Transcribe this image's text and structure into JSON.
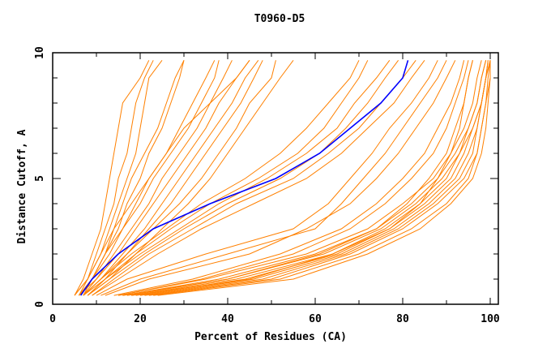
{
  "chart_data": {
    "type": "line",
    "title": "T0960-D5",
    "xlabel": "Percent of Residues (CA)",
    "ylabel": "Distance Cutoff, A",
    "xlim": [
      0,
      102
    ],
    "ylim": [
      0,
      10
    ],
    "x_ticks": [
      "0",
      "20",
      "40",
      "60",
      "80",
      "100"
    ],
    "y_ticks": [
      "0",
      "5",
      "10"
    ],
    "grid": false,
    "colors": {
      "highlight": "#0000ff",
      "others": "#ff8000"
    },
    "y_levels": [
      0.35,
      1,
      2,
      3,
      4,
      5,
      6,
      7,
      8,
      9,
      9.7
    ],
    "highlight_series": {
      "x": [
        6.4,
        9,
        15,
        23,
        36,
        51,
        61,
        68,
        75,
        80,
        81.2
      ]
    },
    "series": [
      {
        "x": [
          5,
          7,
          9,
          11,
          12,
          13,
          14,
          15,
          16,
          20,
          22
        ]
      },
      {
        "x": [
          6,
          8,
          10,
          12,
          14,
          15,
          17,
          18,
          19,
          21,
          23
        ]
      },
      {
        "x": [
          5,
          8,
          11,
          13,
          15,
          17,
          19,
          20,
          21,
          22,
          25
        ]
      },
      {
        "x": [
          6,
          9,
          12,
          15,
          17,
          20,
          22,
          25,
          27,
          29,
          30
        ]
      },
      {
        "x": [
          7,
          9,
          12,
          14,
          16,
          18,
          21,
          24,
          26,
          28,
          30
        ]
      },
      {
        "x": [
          6,
          9,
          13,
          16,
          20,
          23,
          27,
          31,
          34,
          37,
          38
        ]
      },
      {
        "x": [
          7,
          10,
          14,
          18,
          22,
          25,
          29,
          33,
          36,
          39,
          41
        ]
      },
      {
        "x": [
          6,
          10,
          15,
          19,
          23,
          27,
          31,
          35,
          38,
          42,
          45
        ]
      },
      {
        "x": [
          7,
          11,
          16,
          21,
          25,
          29,
          33,
          37,
          41,
          44,
          47
        ]
      },
      {
        "x": [
          8,
          12,
          17,
          22,
          27,
          31,
          35,
          39,
          43,
          46,
          48
        ]
      },
      {
        "x": [
          7,
          11,
          17,
          23,
          29,
          34,
          38,
          42,
          45,
          50,
          51
        ]
      },
      {
        "x": [
          8,
          13,
          19,
          25,
          31,
          36,
          40,
          44,
          48,
          52,
          55
        ]
      },
      {
        "x": [
          6,
          9,
          12,
          16,
          19,
          22,
          26,
          30,
          36,
          42,
          45
        ]
      },
      {
        "x": [
          5,
          8,
          11,
          14,
          18,
          22,
          26,
          29,
          32,
          35,
          37
        ]
      },
      {
        "x": [
          7,
          11,
          18,
          26,
          34,
          44,
          52,
          58,
          63,
          68,
          70
        ]
      },
      {
        "x": [
          8,
          12,
          19,
          27,
          36,
          47,
          56,
          62,
          66,
          70,
          72
        ]
      },
      {
        "x": [
          7,
          12,
          20,
          29,
          38,
          49,
          58,
          65,
          69,
          74,
          77
        ]
      },
      {
        "x": [
          8,
          13,
          21,
          30,
          40,
          52,
          61,
          67,
          72,
          76,
          79
        ]
      },
      {
        "x": [
          9,
          14,
          22,
          32,
          42,
          55,
          63,
          70,
          75,
          80,
          83
        ]
      },
      {
        "x": [
          9,
          15,
          24,
          34,
          46,
          58,
          66,
          72,
          78,
          82,
          85
        ]
      },
      {
        "x": [
          10,
          17,
          35,
          55,
          63,
          68,
          73,
          77,
          82,
          86,
          88
        ]
      },
      {
        "x": [
          11,
          20,
          40,
          60,
          66,
          71,
          76,
          80,
          84,
          88,
          90
        ]
      },
      {
        "x": [
          12,
          22,
          45,
          58,
          68,
          74,
          79,
          83,
          87,
          90,
          92
        ]
      },
      {
        "x": [
          15,
          35,
          58,
          72,
          80,
          87,
          91,
          94,
          96,
          97,
          98
        ]
      },
      {
        "x": [
          16,
          38,
          60,
          74,
          82,
          88,
          92,
          95,
          97,
          98,
          99
        ]
      },
      {
        "x": [
          17,
          40,
          62,
          75,
          83,
          89,
          93,
          95,
          97,
          98,
          99
        ]
      },
      {
        "x": [
          18,
          42,
          64,
          76,
          84,
          90,
          93,
          96,
          98,
          99,
          99.5
        ]
      },
      {
        "x": [
          19,
          44,
          65,
          77,
          85,
          91,
          94,
          96,
          98,
          99,
          99.5
        ]
      },
      {
        "x": [
          20,
          46,
          66,
          78,
          86,
          92,
          95,
          97,
          98,
          99,
          100
        ]
      },
      {
        "x": [
          21,
          48,
          67,
          79,
          87,
          93,
          96,
          97,
          98,
          99,
          100
        ]
      },
      {
        "x": [
          22,
          50,
          68,
          80,
          88,
          94,
          97,
          98,
          99,
          99.5,
          100
        ]
      },
      {
        "x": [
          23,
          52,
          70,
          82,
          90,
          95,
          97,
          98,
          99,
          100,
          100
        ]
      },
      {
        "x": [
          18,
          45,
          64,
          77,
          84,
          88,
          91,
          93,
          94,
          95,
          96
        ]
      },
      {
        "x": [
          16,
          40,
          61,
          74,
          81,
          86,
          90,
          92,
          94,
          95,
          96
        ]
      },
      {
        "x": [
          24,
          55,
          72,
          84,
          91,
          96,
          98,
          99,
          99.5,
          100,
          100
        ]
      },
      {
        "x": [
          14,
          32,
          52,
          66,
          74,
          80,
          85,
          88,
          91,
          93,
          94
        ]
      },
      {
        "x": [
          15,
          34,
          55,
          68,
          76,
          82,
          87,
          90,
          92,
          94,
          95
        ]
      }
    ]
  }
}
